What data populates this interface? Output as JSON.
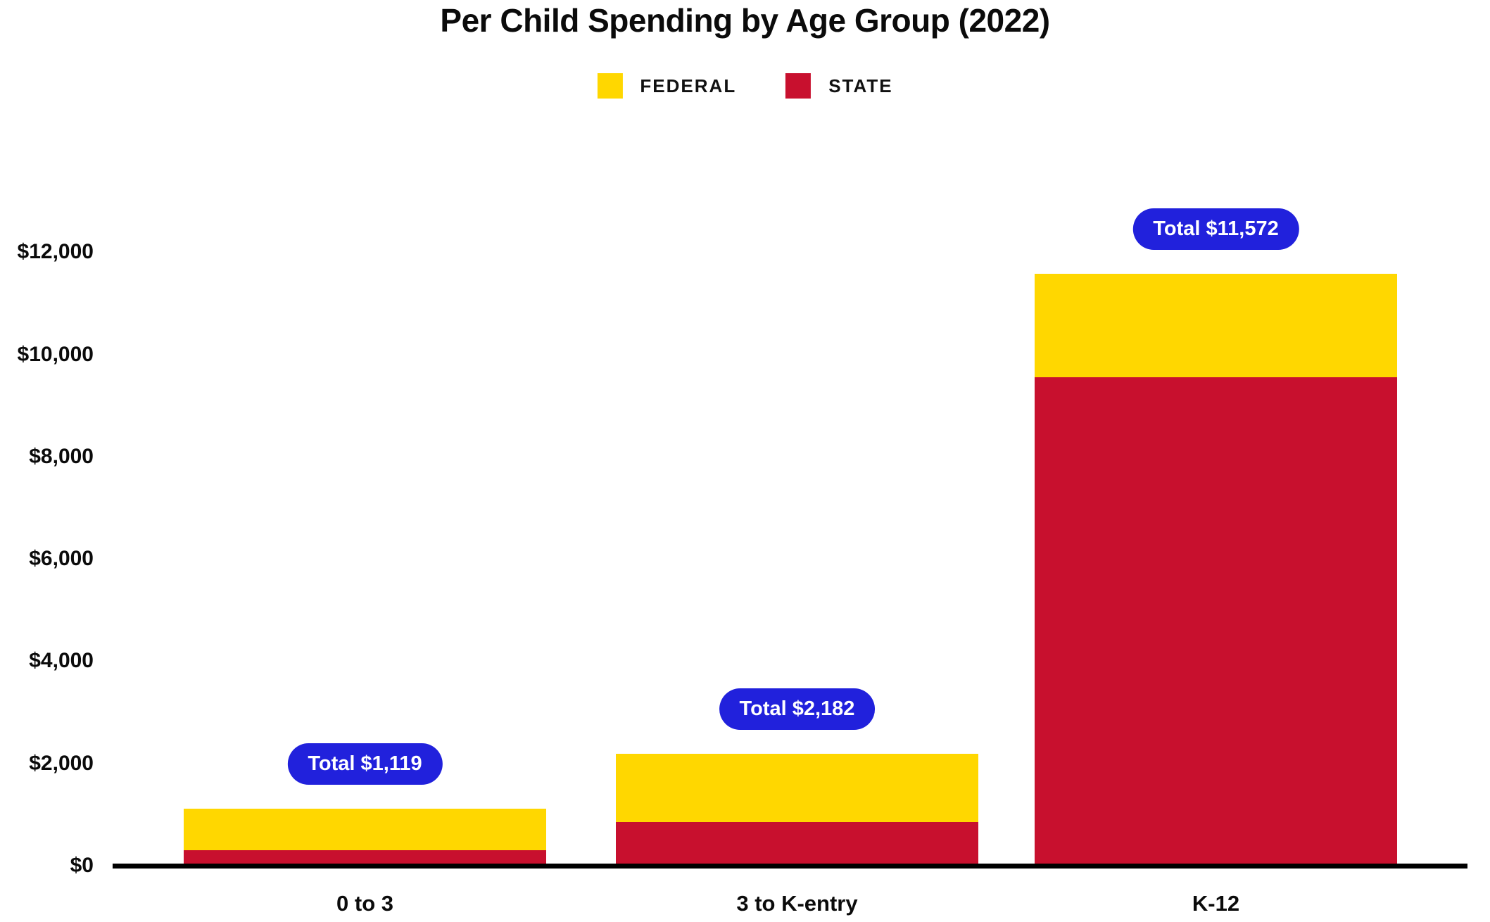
{
  "chart_data": {
    "type": "bar",
    "stacked": true,
    "title": "Per Child Spending by Age Group (2022)",
    "categories": [
      "0 to 3",
      "3 to K-entry",
      "K-12"
    ],
    "series": [
      {
        "name": "STATE",
        "color": "#C8102E",
        "values": [
          308,
          856,
          9558
        ]
      },
      {
        "name": "FEDERAL",
        "color": "#FFD700",
        "values": [
          811,
          1326,
          2014
        ]
      }
    ],
    "totals": [
      1119,
      2182,
      11572
    ],
    "total_labels": [
      "Total $1,119",
      "Total $2,182",
      "Total $11,572"
    ],
    "total_badge_color": "#2121DC",
    "total_badge_text_color": "#FFFFFF",
    "legend": [
      {
        "label": "FEDERAL",
        "color": "#FFD700"
      },
      {
        "label": "STATE",
        "color": "#C8102E"
      }
    ],
    "legend_position": "top",
    "yticks": [
      {
        "value": 0,
        "label": "$0"
      },
      {
        "value": 2000,
        "label": "$2,000"
      },
      {
        "value": 4000,
        "label": "$4,000"
      },
      {
        "value": 6000,
        "label": "$6,000"
      },
      {
        "value": 8000,
        "label": "$8,000"
      },
      {
        "value": 10000,
        "label": "$10,000"
      },
      {
        "value": 12000,
        "label": "$12,000"
      }
    ],
    "ylim": [
      0,
      12000
    ],
    "grid": false,
    "axis_color": "#000000",
    "text_color": "#0B0B0B",
    "background": "#FFFFFF"
  }
}
